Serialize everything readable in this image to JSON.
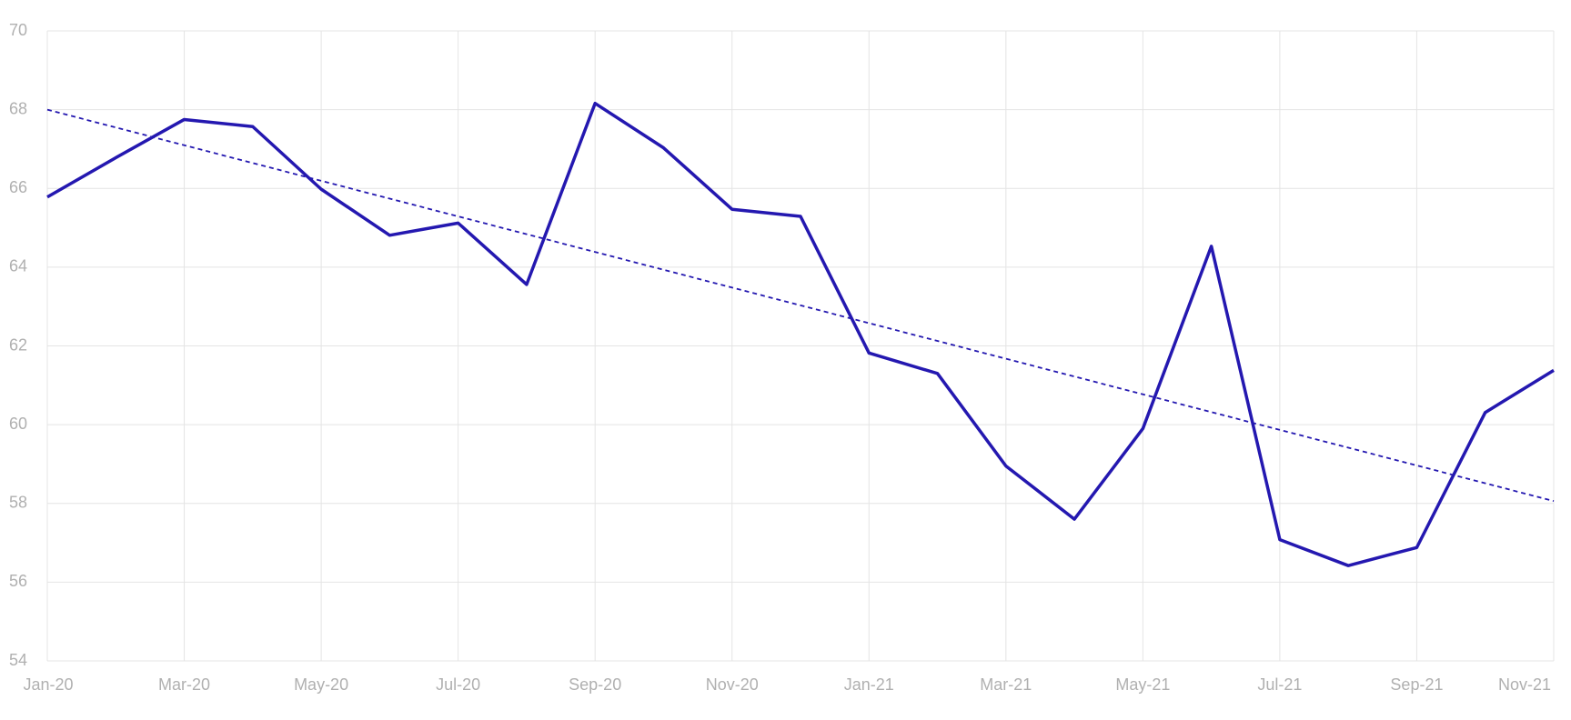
{
  "chart_data": {
    "type": "line",
    "categories": [
      "Jan-20",
      null,
      "Mar-20",
      null,
      "May-20",
      null,
      "Jul-20",
      null,
      "Sep-20",
      null,
      "Nov-20",
      null,
      "Jan-21",
      null,
      "Mar-21",
      null,
      "May-21",
      null,
      "Jul-21",
      null,
      "Sep-21",
      null,
      "Nov-21"
    ],
    "series": [
      {
        "color": "#2418b0",
        "values": [
          65.78,
          66.78,
          67.75,
          67.57,
          65.98,
          64.81,
          65.12,
          63.56,
          68.16,
          67.03,
          65.47,
          65.29,
          61.82,
          61.3,
          58.95,
          57.6,
          59.9,
          64.53,
          57.08,
          56.42,
          56.88,
          60.31,
          61.38
        ]
      }
    ],
    "trend": {
      "color": "#2418b0",
      "values": [
        68.0,
        58.06
      ]
    },
    "ylim": [
      54,
      70
    ],
    "yticks": [
      54,
      56,
      58,
      60,
      62,
      64,
      66,
      68,
      70
    ],
    "grid": true
  }
}
